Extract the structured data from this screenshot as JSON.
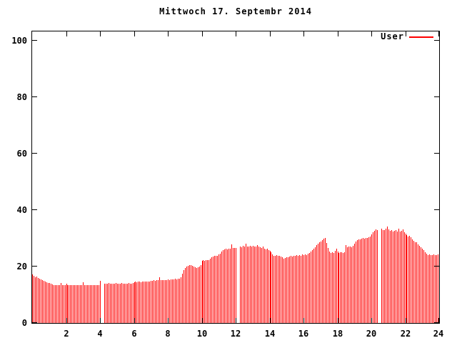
{
  "window": {
    "background": "#ffffff",
    "text_color": "#000000"
  },
  "chart_data": {
    "type": "bar",
    "title": "Mittwoch 17. Septembr 2014",
    "xlabel": "",
    "ylabel": "",
    "xlim": [
      0,
      24
    ],
    "ylim": [
      0,
      100
    ],
    "x_ticks": [
      2,
      4,
      6,
      8,
      10,
      12,
      14,
      16,
      18,
      20,
      22,
      24
    ],
    "y_ticks": [
      0,
      20,
      40,
      60,
      80,
      100
    ],
    "grid": false,
    "axis_color": "#000000",
    "legend": {
      "position": "top-right",
      "entries": [
        {
          "label": "User",
          "color": "#ff0000",
          "style": "line"
        }
      ]
    },
    "note_gaps": "zero values represent missing samples (white gaps) near hours 4.1, 12.1 and 20.4",
    "interval_minutes": 5,
    "series": [
      {
        "name": "User",
        "color": "#ff0000",
        "start_hour": 0,
        "values": [
          17.3,
          16.7,
          16.2,
          16.4,
          15.9,
          15.6,
          15.4,
          15.1,
          14.9,
          14.7,
          14.5,
          14.3,
          14.1,
          13.8,
          13.6,
          13.5,
          13.4,
          13.4,
          13.5,
          13.4,
          14.2,
          13.5,
          13.4,
          13.5,
          13.9,
          13.4,
          13.3,
          13.4,
          13.3,
          13.4,
          13.4,
          13.3,
          13.4,
          13.5,
          13.4,
          13.3,
          14.4,
          13.5,
          13.4,
          13.4,
          13.3,
          13.4,
          13.4,
          13.3,
          13.4,
          13.4,
          13.5,
          13.4,
          14.9,
          0,
          0,
          14.0,
          13.9,
          14.0,
          14.1,
          14.0,
          13.9,
          14.0,
          14.0,
          14.1,
          14.0,
          13.9,
          14.0,
          14.1,
          14.0,
          14.0,
          13.9,
          14.0,
          14.1,
          14.0,
          14.0,
          14.1,
          14.4,
          14.6,
          14.5,
          14.7,
          14.6,
          14.5,
          14.7,
          14.6,
          14.8,
          14.7,
          14.6,
          14.8,
          15.0,
          14.9,
          15.1,
          15.0,
          15.2,
          15.1,
          16.3,
          15.2,
          15.1,
          15.3,
          15.2,
          15.3,
          15.4,
          15.3,
          15.5,
          15.4,
          15.5,
          15.6,
          15.5,
          15.7,
          15.8,
          16.2,
          17.4,
          18.8,
          19.6,
          19.9,
          20.2,
          20.5,
          20.4,
          20.2,
          20.0,
          19.7,
          19.5,
          19.8,
          20.1,
          20.4,
          22.0,
          22.2,
          22.1,
          22.3,
          22.2,
          22.4,
          22.9,
          23.3,
          23.6,
          23.8,
          23.7,
          23.9,
          24.2,
          24.6,
          25.2,
          25.8,
          26.1,
          26.3,
          26.2,
          26.4,
          26.3,
          27.8,
          26.5,
          26.6,
          26.5,
          0,
          0,
          27.1,
          26.8,
          27.3,
          27.0,
          28.0,
          27.2,
          27.0,
          27.4,
          27.1,
          27.3,
          27.0,
          27.2,
          27.5,
          27.1,
          26.9,
          26.7,
          27.0,
          26.4,
          26.1,
          26.3,
          25.9,
          25.5,
          25.1,
          24.2,
          23.9,
          23.7,
          24.0,
          23.8,
          23.9,
          23.6,
          23.3,
          22.8,
          23.1,
          23.4,
          23.2,
          23.5,
          23.8,
          23.6,
          23.9,
          23.7,
          24.0,
          23.8,
          24.1,
          23.9,
          24.2,
          24.0,
          24.3,
          24.1,
          24.5,
          24.9,
          25.4,
          25.9,
          26.4,
          26.9,
          27.5,
          28.1,
          28.5,
          28.8,
          29.3,
          29.9,
          30.2,
          28.4,
          26.6,
          25.3,
          24.9,
          25.1,
          24.8,
          25.6,
          26.3,
          25.2,
          24.9,
          25.1,
          25.0,
          24.8,
          25.1,
          27.6,
          26.8,
          27.0,
          27.2,
          26.9,
          27.3,
          28.2,
          28.8,
          29.4,
          29.7,
          29.5,
          29.9,
          30.1,
          29.8,
          30.2,
          30.0,
          30.4,
          30.7,
          31.3,
          32.1,
          32.7,
          33.2,
          33.0,
          0,
          0,
          33.3,
          33.0,
          32.8,
          33.5,
          34.3,
          33.1,
          32.6,
          32.9,
          32.4,
          32.7,
          33.0,
          32.5,
          33.5,
          32.3,
          32.6,
          33.2,
          32.1,
          31.7,
          31.2,
          30.7,
          31.0,
          30.3,
          29.7,
          29.1,
          28.5,
          28.7,
          27.9,
          27.3,
          26.9,
          26.3,
          25.7,
          25.1,
          24.5,
          24.1,
          24.2,
          24.0,
          24.1,
          24.2,
          24.0,
          24.1,
          24.2
        ]
      }
    ]
  }
}
